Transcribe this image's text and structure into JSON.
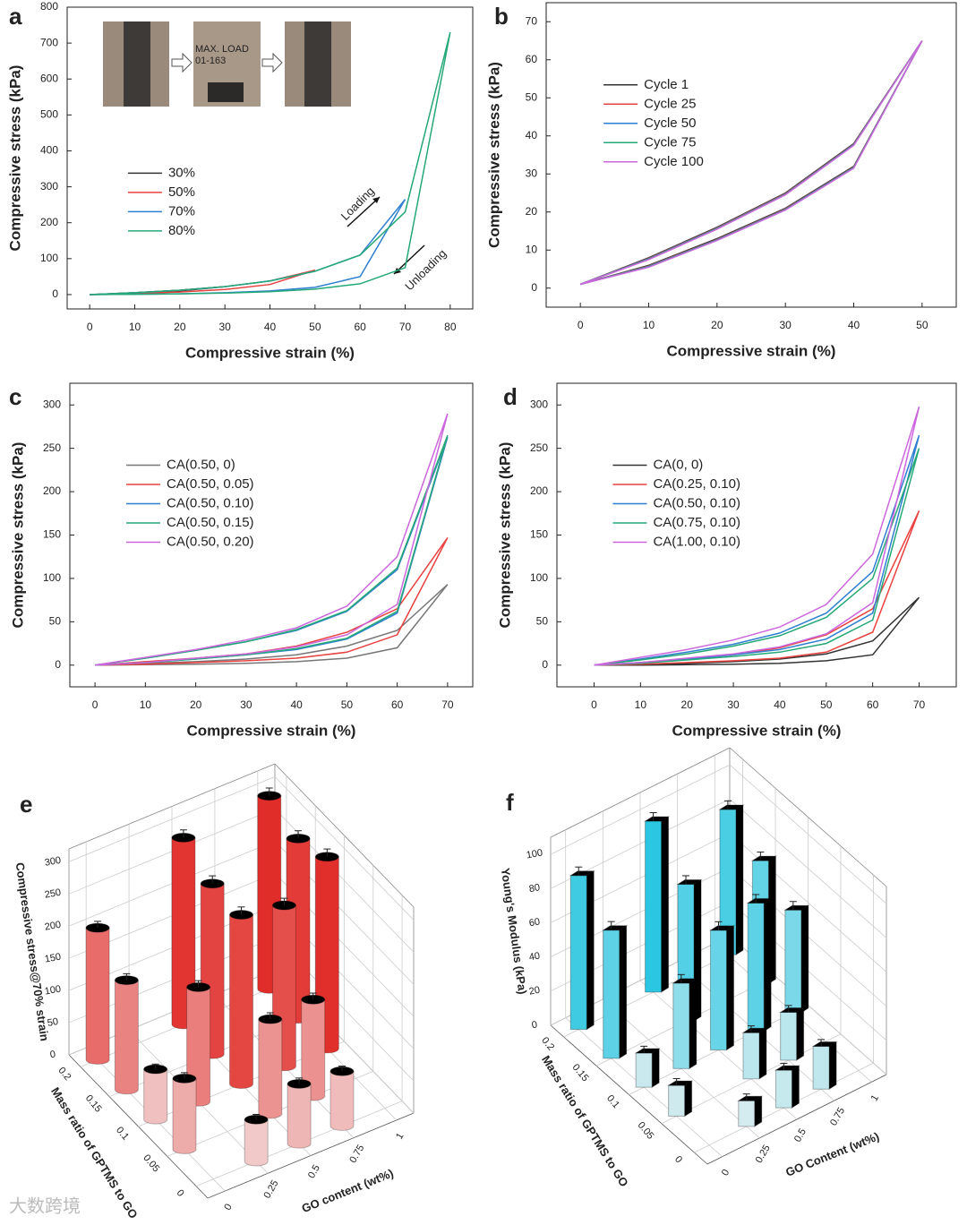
{
  "chart_data": [
    {
      "type": "line",
      "panel": "a",
      "xlabel": "Compressive strain (%)",
      "ylabel": "Compressive stress (kPa)",
      "xlim": [
        -5,
        85
      ],
      "ylim": [
        -40,
        800
      ],
      "xticks": [
        0,
        10,
        20,
        30,
        40,
        50,
        60,
        70,
        80
      ],
      "yticks": [
        0,
        100,
        200,
        300,
        400,
        500,
        600,
        700,
        800
      ],
      "legend": "center-left",
      "annotations": [
        "Loading",
        "Unloading",
        "MAX. LOAD",
        "01-163"
      ],
      "series": [
        {
          "name": "30%",
          "color": "#333333",
          "x": [
            0,
            10,
            20,
            30,
            20,
            10,
            0
          ],
          "values": [
            0,
            5,
            12,
            22,
            10,
            4,
            0
          ]
        },
        {
          "name": "50%",
          "color": "#e8413f",
          "x": [
            0,
            10,
            20,
            30,
            40,
            50,
            40,
            30,
            20,
            10,
            0
          ],
          "values": [
            0,
            5,
            12,
            22,
            38,
            68,
            28,
            14,
            7,
            3,
            0
          ]
        },
        {
          "name": "70%",
          "color": "#2f7fd0",
          "x": [
            0,
            10,
            20,
            30,
            40,
            50,
            60,
            70,
            60,
            50,
            40,
            30,
            20,
            10,
            0
          ],
          "values": [
            0,
            5,
            12,
            22,
            38,
            65,
            110,
            265,
            50,
            20,
            10,
            5,
            2,
            1,
            0
          ]
        },
        {
          "name": "80%",
          "color": "#25a877",
          "x": [
            0,
            10,
            20,
            30,
            40,
            50,
            60,
            70,
            80,
            70,
            60,
            50,
            40,
            30,
            20,
            10,
            0
          ],
          "values": [
            0,
            5,
            12,
            22,
            38,
            65,
            110,
            230,
            730,
            75,
            30,
            15,
            8,
            4,
            2,
            1,
            0
          ]
        }
      ]
    },
    {
      "type": "line",
      "panel": "b",
      "xlabel": "Compressive strain (%)",
      "ylabel": "Compressive stress (kPa)",
      "xlim": [
        -5,
        55
      ],
      "ylim": [
        -5,
        75
      ],
      "xticks": [
        0,
        10,
        20,
        30,
        40,
        50
      ],
      "yticks": [
        0,
        10,
        20,
        30,
        40,
        50,
        60,
        70
      ],
      "legend": "upper-left",
      "series": [
        {
          "name": "Cycle 1",
          "color": "#333333",
          "x": [
            0,
            10,
            20,
            30,
            40,
            50,
            40,
            30,
            20,
            10,
            0
          ],
          "values": [
            1,
            8,
            16,
            25,
            38,
            65,
            32,
            21,
            13,
            6,
            1
          ]
        },
        {
          "name": "Cycle 25",
          "color": "#e8413f",
          "x": [
            0,
            10,
            20,
            30,
            40,
            50,
            40,
            30,
            20,
            10,
            0
          ],
          "values": [
            1,
            7.8,
            15.8,
            24.8,
            37.8,
            65,
            31.8,
            20.8,
            12.8,
            5.8,
            1
          ]
        },
        {
          "name": "Cycle 50",
          "color": "#2f7fd0",
          "x": [
            0,
            10,
            20,
            30,
            40,
            50,
            40,
            30,
            20,
            10,
            0
          ],
          "values": [
            1,
            7.7,
            15.7,
            24.7,
            37.7,
            65,
            31.7,
            20.7,
            12.7,
            5.7,
            1
          ]
        },
        {
          "name": "Cycle 75",
          "color": "#25a877",
          "x": [
            0,
            10,
            20,
            30,
            40,
            50,
            40,
            30,
            20,
            10,
            0
          ],
          "values": [
            1,
            7.6,
            15.6,
            24.6,
            37.6,
            65,
            31.6,
            20.6,
            12.6,
            5.6,
            1
          ]
        },
        {
          "name": "Cycle 100",
          "color": "#cc66dd",
          "x": [
            0,
            10,
            20,
            30,
            40,
            50,
            40,
            30,
            20,
            10,
            0
          ],
          "values": [
            1,
            7.5,
            15.5,
            24.5,
            37.5,
            65,
            31.5,
            20.5,
            12.5,
            5.5,
            1
          ]
        }
      ]
    },
    {
      "type": "line",
      "panel": "c",
      "xlabel": "Compressive strain (%)",
      "ylabel": "Compressive stress (kPa)",
      "xlim": [
        -5,
        75
      ],
      "ylim": [
        -25,
        325
      ],
      "xticks": [
        0,
        10,
        20,
        30,
        40,
        50,
        60,
        70
      ],
      "yticks": [
        0,
        50,
        100,
        150,
        200,
        250,
        300
      ],
      "legend": "upper-left",
      "series": [
        {
          "name": "CA(0.50, 0)",
          "color": "#777777",
          "x": [
            0,
            10,
            20,
            30,
            40,
            50,
            60,
            70,
            60,
            50,
            40,
            30,
            20,
            10,
            0
          ],
          "values": [
            0,
            2,
            4,
            7,
            12,
            22,
            40,
            93,
            20,
            8,
            4,
            2,
            1,
            0.5,
            0
          ]
        },
        {
          "name": "CA(0.50, 0.05)",
          "color": "#e8413f",
          "x": [
            0,
            10,
            20,
            30,
            40,
            50,
            60,
            70,
            60,
            50,
            40,
            30,
            20,
            10,
            0
          ],
          "values": [
            0,
            4,
            8,
            13,
            22,
            38,
            65,
            147,
            35,
            15,
            8,
            5,
            3,
            1,
            0
          ]
        },
        {
          "name": "CA(0.50, 0.10)",
          "color": "#2f7fd0",
          "x": [
            0,
            10,
            20,
            30,
            40,
            50,
            60,
            70,
            60,
            50,
            40,
            30,
            20,
            10,
            0
          ],
          "values": [
            0,
            8,
            17,
            27,
            40,
            62,
            110,
            263,
            60,
            30,
            18,
            12,
            7,
            3,
            0
          ]
        },
        {
          "name": "CA(0.50, 0.15)",
          "color": "#25a877",
          "x": [
            0,
            10,
            20,
            30,
            40,
            50,
            60,
            70,
            60,
            50,
            40,
            30,
            20,
            10,
            0
          ],
          "values": [
            0,
            8,
            17,
            27,
            41,
            63,
            112,
            265,
            62,
            31,
            19,
            12,
            7,
            3,
            0
          ]
        },
        {
          "name": "CA(0.50, 0.20)",
          "color": "#cc66dd",
          "x": [
            0,
            10,
            20,
            30,
            40,
            50,
            60,
            70,
            60,
            50,
            40,
            30,
            20,
            10,
            0
          ],
          "values": [
            0,
            9,
            18,
            29,
            43,
            68,
            125,
            290,
            70,
            35,
            21,
            13,
            8,
            3,
            0
          ]
        }
      ]
    },
    {
      "type": "line",
      "panel": "d",
      "xlabel": "Compressive strain (%)",
      "ylabel": "Compressive stress (kPa)",
      "xlim": [
        -8,
        78
      ],
      "ylim": [
        -25,
        325
      ],
      "xticks": [
        0,
        10,
        20,
        30,
        40,
        50,
        60,
        70
      ],
      "yticks": [
        0,
        50,
        100,
        150,
        200,
        250,
        300
      ],
      "legend": "upper-left",
      "series": [
        {
          "name": "CA(0, 0)",
          "color": "#333333",
          "x": [
            0,
            10,
            20,
            30,
            40,
            50,
            60,
            70,
            60,
            50,
            40,
            30,
            20,
            10,
            0
          ],
          "values": [
            0,
            1,
            2,
            4,
            7,
            13,
            28,
            78,
            12,
            5,
            2,
            1,
            0.5,
            0,
            0
          ]
        },
        {
          "name": "CA(0.25, 0.10)",
          "color": "#e8413f",
          "x": [
            0,
            10,
            20,
            30,
            40,
            50,
            60,
            70,
            60,
            50,
            40,
            30,
            20,
            10,
            0
          ],
          "values": [
            0,
            3,
            7,
            12,
            20,
            35,
            65,
            178,
            38,
            15,
            8,
            5,
            3,
            1,
            0
          ]
        },
        {
          "name": "CA(0.50, 0.10)",
          "color": "#2f7fd0",
          "x": [
            0,
            10,
            20,
            30,
            40,
            50,
            60,
            70,
            60,
            50,
            40,
            30,
            20,
            10,
            0
          ],
          "values": [
            0,
            7,
            15,
            24,
            37,
            60,
            108,
            265,
            60,
            30,
            18,
            12,
            7,
            3,
            0
          ]
        },
        {
          "name": "CA(0.75, 0.10)",
          "color": "#25a877",
          "x": [
            0,
            10,
            20,
            30,
            40,
            50,
            60,
            70,
            60,
            50,
            40,
            30,
            20,
            10,
            0
          ],
          "values": [
            0,
            6,
            13,
            22,
            34,
            55,
            100,
            250,
            52,
            25,
            15,
            10,
            6,
            2,
            0
          ]
        },
        {
          "name": "CA(1.00, 0.10)",
          "color": "#cc66dd",
          "x": [
            0,
            10,
            20,
            30,
            40,
            50,
            60,
            70,
            60,
            50,
            40,
            30,
            20,
            10,
            0
          ],
          "values": [
            0,
            9,
            18,
            29,
            44,
            70,
            128,
            298,
            72,
            36,
            21,
            13,
            8,
            3,
            0
          ]
        }
      ]
    },
    {
      "type": "bar3d",
      "panel": "e",
      "xlabel": "GO content (wt%)",
      "ylabel": "Mass ratio of GPTMS to GO",
      "zlabel": "Compressive stress@70% strain",
      "xlim": [
        -0.1,
        1.1
      ],
      "ylim": [
        -0.02,
        0.22
      ],
      "zlim": [
        0,
        320
      ],
      "xticks": [
        0,
        0.25,
        0.5,
        0.75,
        1
      ],
      "yticks": [
        0,
        0.05,
        0.1,
        0.15,
        0.2
      ],
      "zticks": [
        0,
        50,
        100,
        150,
        200,
        250,
        300
      ],
      "color_low": "#f4f4f4",
      "color_high": "#e0201c",
      "shape": "cylinder",
      "x": [
        0.25,
        0.5,
        0.75,
        0,
        0.5,
        0.75,
        0,
        0.25,
        0.5,
        0.75,
        1,
        0,
        0.5,
        1,
        0,
        0.5,
        1
      ],
      "y": [
        0,
        0,
        0,
        0.05,
        0.05,
        0.05,
        0.1,
        0.1,
        0.1,
        0.1,
        0.1,
        0.15,
        0.15,
        0.15,
        0.2,
        0.2,
        0.2
      ],
      "values": [
        65,
        93,
        85,
        110,
        147,
        150,
        78,
        178,
        263,
        250,
        298,
        170,
        265,
        280,
        205,
        290,
        300
      ],
      "errors": [
        8,
        9,
        8,
        9,
        10,
        10,
        8,
        10,
        12,
        11,
        12,
        10,
        12,
        12,
        10,
        12,
        12
      ]
    },
    {
      "type": "bar3d",
      "panel": "f",
      "xlabel": "GO Content (wt%)",
      "ylabel": "Mass ratio of GPTMS to GO",
      "zlabel": "Young's Modulus (kPa)",
      "xlim": [
        -0.1,
        1.1
      ],
      "ylim": [
        -0.02,
        0.22
      ],
      "zlim": [
        0,
        110
      ],
      "xticks": [
        0,
        0.25,
        0.5,
        0.75,
        1
      ],
      "yticks": [
        0,
        0.05,
        0.1,
        0.15,
        0.2
      ],
      "zticks": [
        0,
        20,
        40,
        60,
        80,
        100
      ],
      "color_low": "#f2f2f2",
      "color_high": "#17c3e0",
      "shape": "box",
      "x": [
        0.25,
        0.5,
        0.75,
        0,
        0.5,
        0.75,
        0,
        0.25,
        0.5,
        0.75,
        1,
        0,
        0.5,
        1,
        0,
        0.5,
        1
      ],
      "y": [
        0,
        0,
        0,
        0.05,
        0.05,
        0.05,
        0.1,
        0.1,
        0.1,
        0.1,
        0.1,
        0.15,
        0.15,
        0.15,
        0.2,
        0.2,
        0.2
      ],
      "values": [
        15,
        22,
        25,
        18,
        27,
        28,
        20,
        50,
        70,
        75,
        60,
        75,
        80,
        72,
        90,
        100,
        85
      ],
      "errors": [
        4,
        4,
        4,
        4,
        4,
        4,
        4,
        5,
        5,
        5,
        5,
        5,
        5,
        5,
        5,
        5,
        5
      ]
    }
  ],
  "watermark": "大数跨境"
}
